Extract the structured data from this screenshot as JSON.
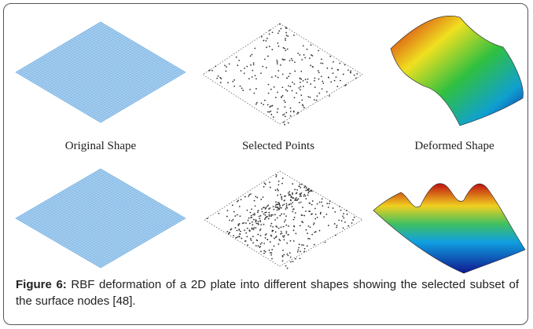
{
  "panels": [
    {
      "label": "Original Shape"
    },
    {
      "label": "Selected Points"
    },
    {
      "label": "Deformed Shape"
    }
  ],
  "caption": {
    "label": "Figure 6:",
    "text": "RBF deformation of a 2D plate into different shapes showing the selected subset of the surface nodes [48]."
  }
}
